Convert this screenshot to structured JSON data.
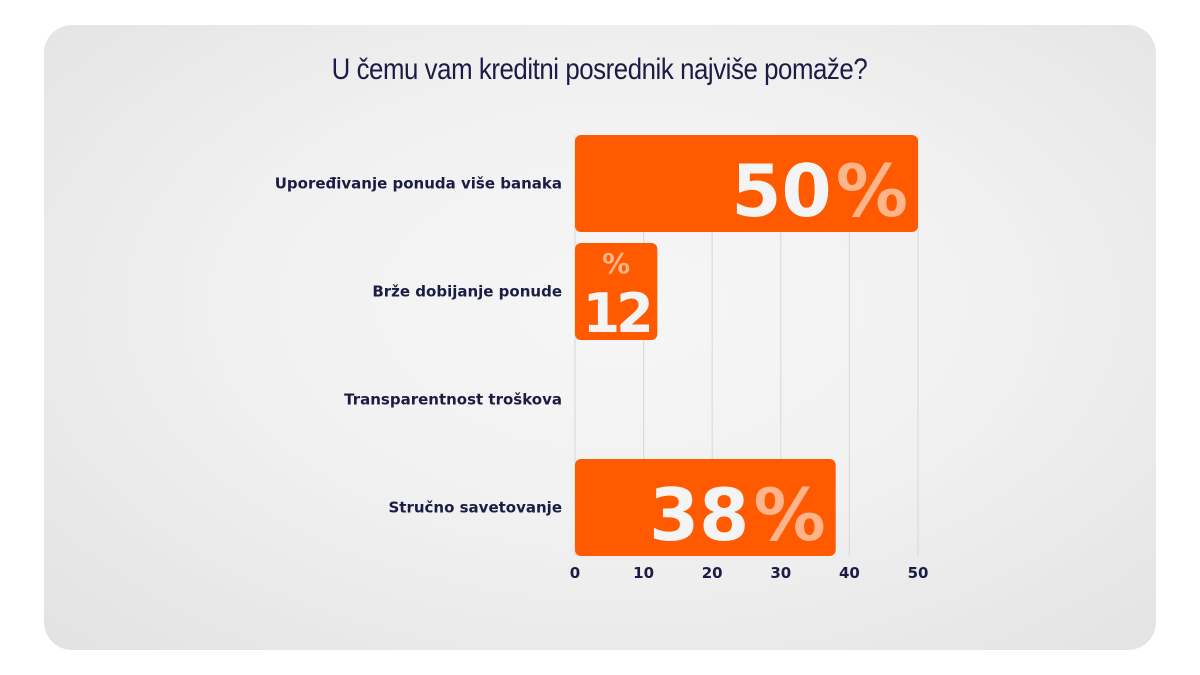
{
  "chart_data": {
    "type": "bar",
    "orientation": "horizontal",
    "title": "U čemu vam kreditni posrednik najviše pomaže?",
    "categories": [
      "Upoređivanje ponuda više banaka",
      "Brže dobijanje ponude",
      "Transparentnost troškova",
      "Stručno savetovanje"
    ],
    "values": [
      50,
      12,
      0,
      38
    ],
    "value_suffix": "%",
    "xlabel": "",
    "ylabel": "",
    "xlim": [
      0,
      50
    ],
    "xticks": [
      "0",
      "10",
      "20",
      "30",
      "40",
      "50"
    ],
    "grid": "vertical",
    "legend": "none",
    "bar_color": "#ff5a00"
  }
}
